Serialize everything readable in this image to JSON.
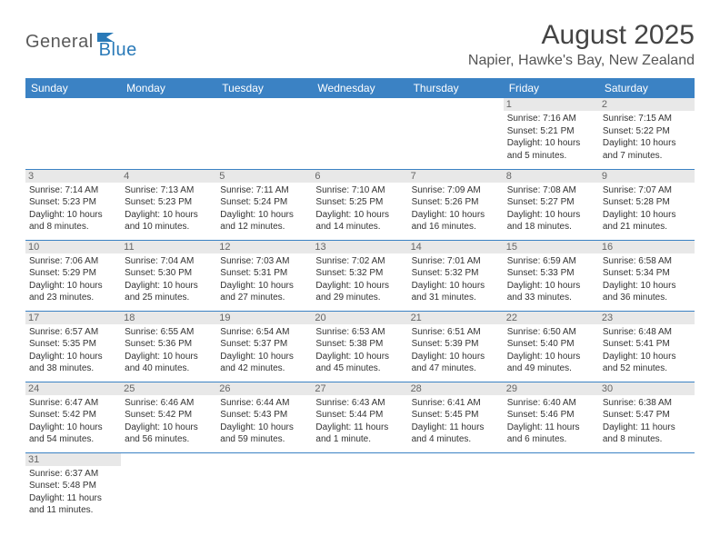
{
  "brand": {
    "name_part1": "General",
    "name_part2": "Blue"
  },
  "title": "August 2025",
  "location": "Napier, Hawke's Bay, New Zealand",
  "colors": {
    "header_bg": "#3b82c4",
    "header_text": "#ffffff",
    "row_border": "#3b82c4",
    "daynum_bg": "#e8e8e8",
    "text": "#333333",
    "brand_gray": "#5a5a5a",
    "brand_blue": "#2a7ab8"
  },
  "weekdays": [
    "Sunday",
    "Monday",
    "Tuesday",
    "Wednesday",
    "Thursday",
    "Friday",
    "Saturday"
  ],
  "weeks": [
    [
      null,
      null,
      null,
      null,
      null,
      {
        "d": "1",
        "sr": "7:16 AM",
        "ss": "5:21 PM",
        "dl": "10 hours and 5 minutes."
      },
      {
        "d": "2",
        "sr": "7:15 AM",
        "ss": "5:22 PM",
        "dl": "10 hours and 7 minutes."
      }
    ],
    [
      {
        "d": "3",
        "sr": "7:14 AM",
        "ss": "5:23 PM",
        "dl": "10 hours and 8 minutes."
      },
      {
        "d": "4",
        "sr": "7:13 AM",
        "ss": "5:23 PM",
        "dl": "10 hours and 10 minutes."
      },
      {
        "d": "5",
        "sr": "7:11 AM",
        "ss": "5:24 PM",
        "dl": "10 hours and 12 minutes."
      },
      {
        "d": "6",
        "sr": "7:10 AM",
        "ss": "5:25 PM",
        "dl": "10 hours and 14 minutes."
      },
      {
        "d": "7",
        "sr": "7:09 AM",
        "ss": "5:26 PM",
        "dl": "10 hours and 16 minutes."
      },
      {
        "d": "8",
        "sr": "7:08 AM",
        "ss": "5:27 PM",
        "dl": "10 hours and 18 minutes."
      },
      {
        "d": "9",
        "sr": "7:07 AM",
        "ss": "5:28 PM",
        "dl": "10 hours and 21 minutes."
      }
    ],
    [
      {
        "d": "10",
        "sr": "7:06 AM",
        "ss": "5:29 PM",
        "dl": "10 hours and 23 minutes."
      },
      {
        "d": "11",
        "sr": "7:04 AM",
        "ss": "5:30 PM",
        "dl": "10 hours and 25 minutes."
      },
      {
        "d": "12",
        "sr": "7:03 AM",
        "ss": "5:31 PM",
        "dl": "10 hours and 27 minutes."
      },
      {
        "d": "13",
        "sr": "7:02 AM",
        "ss": "5:32 PM",
        "dl": "10 hours and 29 minutes."
      },
      {
        "d": "14",
        "sr": "7:01 AM",
        "ss": "5:32 PM",
        "dl": "10 hours and 31 minutes."
      },
      {
        "d": "15",
        "sr": "6:59 AM",
        "ss": "5:33 PM",
        "dl": "10 hours and 33 minutes."
      },
      {
        "d": "16",
        "sr": "6:58 AM",
        "ss": "5:34 PM",
        "dl": "10 hours and 36 minutes."
      }
    ],
    [
      {
        "d": "17",
        "sr": "6:57 AM",
        "ss": "5:35 PM",
        "dl": "10 hours and 38 minutes."
      },
      {
        "d": "18",
        "sr": "6:55 AM",
        "ss": "5:36 PM",
        "dl": "10 hours and 40 minutes."
      },
      {
        "d": "19",
        "sr": "6:54 AM",
        "ss": "5:37 PM",
        "dl": "10 hours and 42 minutes."
      },
      {
        "d": "20",
        "sr": "6:53 AM",
        "ss": "5:38 PM",
        "dl": "10 hours and 45 minutes."
      },
      {
        "d": "21",
        "sr": "6:51 AM",
        "ss": "5:39 PM",
        "dl": "10 hours and 47 minutes."
      },
      {
        "d": "22",
        "sr": "6:50 AM",
        "ss": "5:40 PM",
        "dl": "10 hours and 49 minutes."
      },
      {
        "d": "23",
        "sr": "6:48 AM",
        "ss": "5:41 PM",
        "dl": "10 hours and 52 minutes."
      }
    ],
    [
      {
        "d": "24",
        "sr": "6:47 AM",
        "ss": "5:42 PM",
        "dl": "10 hours and 54 minutes."
      },
      {
        "d": "25",
        "sr": "6:46 AM",
        "ss": "5:42 PM",
        "dl": "10 hours and 56 minutes."
      },
      {
        "d": "26",
        "sr": "6:44 AM",
        "ss": "5:43 PM",
        "dl": "10 hours and 59 minutes."
      },
      {
        "d": "27",
        "sr": "6:43 AM",
        "ss": "5:44 PM",
        "dl": "11 hours and 1 minute."
      },
      {
        "d": "28",
        "sr": "6:41 AM",
        "ss": "5:45 PM",
        "dl": "11 hours and 4 minutes."
      },
      {
        "d": "29",
        "sr": "6:40 AM",
        "ss": "5:46 PM",
        "dl": "11 hours and 6 minutes."
      },
      {
        "d": "30",
        "sr": "6:38 AM",
        "ss": "5:47 PM",
        "dl": "11 hours and 8 minutes."
      }
    ],
    [
      {
        "d": "31",
        "sr": "6:37 AM",
        "ss": "5:48 PM",
        "dl": "11 hours and 11 minutes."
      },
      null,
      null,
      null,
      null,
      null,
      null
    ]
  ],
  "labels": {
    "sunrise": "Sunrise:",
    "sunset": "Sunset:",
    "daylight": "Daylight:"
  }
}
